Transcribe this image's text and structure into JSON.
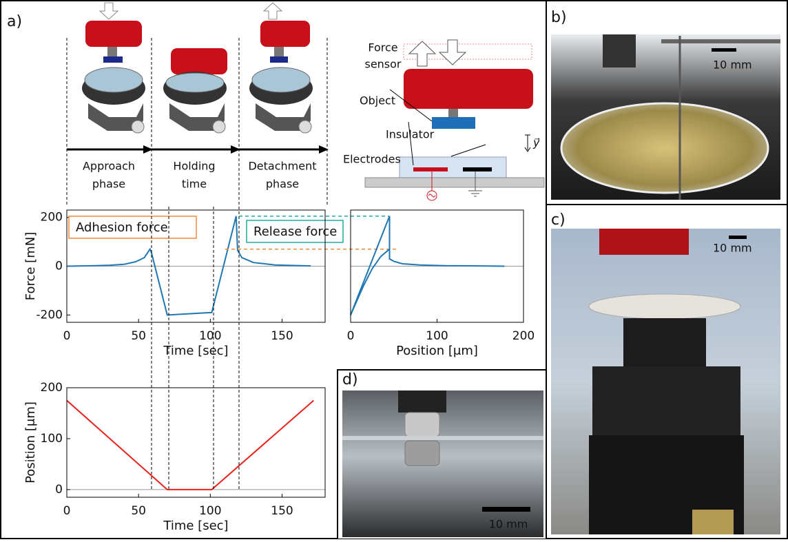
{
  "panels": {
    "a": "a)",
    "b": "b)",
    "c": "c)",
    "d": "d)"
  },
  "phases": [
    [
      "Approach",
      "phase"
    ],
    [
      "Holding",
      "time"
    ],
    [
      "Detachment",
      "phase"
    ]
  ],
  "schematic": {
    "force_sensor": [
      "Force",
      "sensor"
    ],
    "object": "Object",
    "insulator": "Insulator",
    "electrodes": "Electrodes",
    "y_axis": "y⃗"
  },
  "scale_bars": {
    "b": "10 mm",
    "c": "10 mm",
    "d": "10 mm"
  },
  "chart_data": [
    {
      "type": "line",
      "x": [
        0,
        10,
        20,
        30,
        40,
        48,
        54,
        58,
        59,
        70,
        101,
        118,
        119,
        122,
        130,
        145,
        170
      ],
      "series": [
        {
          "color": "#1f77b4",
          "values": [
            0,
            1,
            2,
            4,
            8,
            18,
            35,
            70,
            55,
            -200,
            -190,
            205,
            65,
            35,
            15,
            5,
            1
          ]
        }
      ],
      "xlim": [
        0,
        180
      ],
      "ylim": [
        -230,
        230
      ],
      "xticks": [
        0,
        50,
        100,
        150
      ],
      "yticks": [
        -200,
        0,
        200
      ],
      "xlabel": "Time [sec]",
      "ylabel": "Force [mN]",
      "annotations": [
        {
          "text": "Adhesion force",
          "color": "#f08a3c",
          "value": 70
        },
        {
          "text": "Release force",
          "color": "#1fae9e",
          "value": 205
        }
      ]
    },
    {
      "type": "line",
      "series": [
        {
          "color": "#1f77b4",
          "x": [
            0,
            10,
            20,
            30,
            40,
            45,
            45,
            50,
            60,
            80,
            110,
            150,
            178
          ],
          "values": [
            -200,
            -110,
            -20,
            70,
            160,
            205,
            30,
            20,
            10,
            5,
            2,
            1,
            0
          ]
        },
        {
          "color": "#1f77b4",
          "x": [
            0,
            15,
            25,
            35,
            45
          ],
          "values": [
            -200,
            -80,
            -10,
            40,
            70
          ]
        }
      ],
      "xlim": [
        0,
        200
      ],
      "ylim": [
        -230,
        230
      ],
      "xticks": [
        0,
        100,
        200
      ],
      "xlabel": "Position [μm]"
    },
    {
      "type": "line",
      "x": [
        0,
        70,
        101,
        172
      ],
      "series": [
        {
          "color": "#e8221b",
          "values": [
            175,
            0,
            0,
            175
          ]
        }
      ],
      "xlim": [
        0,
        180
      ],
      "ylim": [
        -15,
        200
      ],
      "xticks": [
        0,
        50,
        100,
        150
      ],
      "yticks": [
        0,
        100,
        200
      ],
      "xlabel": "Time [sec]",
      "ylabel": "Position [μm]"
    }
  ]
}
